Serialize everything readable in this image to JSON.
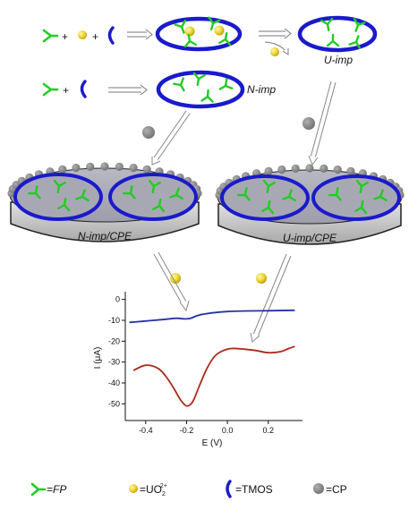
{
  "labels": {
    "n_imp": "N-imp",
    "u_imp": "U-imp",
    "n_imp_cpe": "N-imp/CPE",
    "u_imp_cpe": "U-imp/CPE",
    "plus": "+"
  },
  "legend": {
    "fp": "=FP",
    "uo2_prefix": "=UO",
    "uo2_sub": "2",
    "uo2_sup": "2+",
    "tmos": "=TMOS",
    "cp": "=CP"
  },
  "colors": {
    "ellipse": "#1a1acc",
    "fp": "#22cc22",
    "cp": "#888888",
    "uranyl": "#e8d020",
    "curve_n": "#2233aa",
    "curve_u": "#aa2a1a"
  },
  "chart_data": {
    "type": "line",
    "xlabel": "E (V)",
    "ylabel": "I (μA)",
    "xlim": [
      -0.5,
      0.35
    ],
    "ylim": [
      -58,
      2
    ],
    "x_ticks": [
      -0.4,
      -0.2,
      0.0,
      0.2
    ],
    "x_tick_labels": [
      "-0.4",
      "-0.2",
      "0.0",
      "0.2"
    ],
    "y_ticks": [
      0,
      -10,
      -20,
      -30,
      -40,
      -50
    ],
    "y_tick_labels": [
      "0",
      "-10",
      "-20",
      "-30",
      "-40",
      "-50"
    ],
    "series": [
      {
        "color": "#2233aa",
        "x": [
          -0.48,
          -0.42,
          -0.36,
          -0.3,
          -0.25,
          -0.21,
          -0.18,
          -0.14,
          -0.08,
          0.0,
          0.1,
          0.2,
          0.33
        ],
        "y": [
          -11,
          -10.5,
          -10,
          -9.5,
          -9,
          -9.3,
          -9,
          -7.5,
          -6.5,
          -5.8,
          -5.5,
          -5.4,
          -5.2
        ]
      },
      {
        "color": "#aa2a1a",
        "x": [
          -0.46,
          -0.4,
          -0.34,
          -0.3,
          -0.26,
          -0.23,
          -0.2,
          -0.17,
          -0.14,
          -0.1,
          -0.06,
          -0.02,
          0.02,
          0.08,
          0.14,
          0.2,
          0.26,
          0.3,
          0.33
        ],
        "y": [
          -34,
          -31.5,
          -33,
          -37,
          -43,
          -48,
          -51,
          -49,
          -42,
          -33,
          -27,
          -24.5,
          -23.5,
          -23.8,
          -24.5,
          -25.5,
          -25,
          -23.5,
          -22.5
        ]
      }
    ]
  }
}
